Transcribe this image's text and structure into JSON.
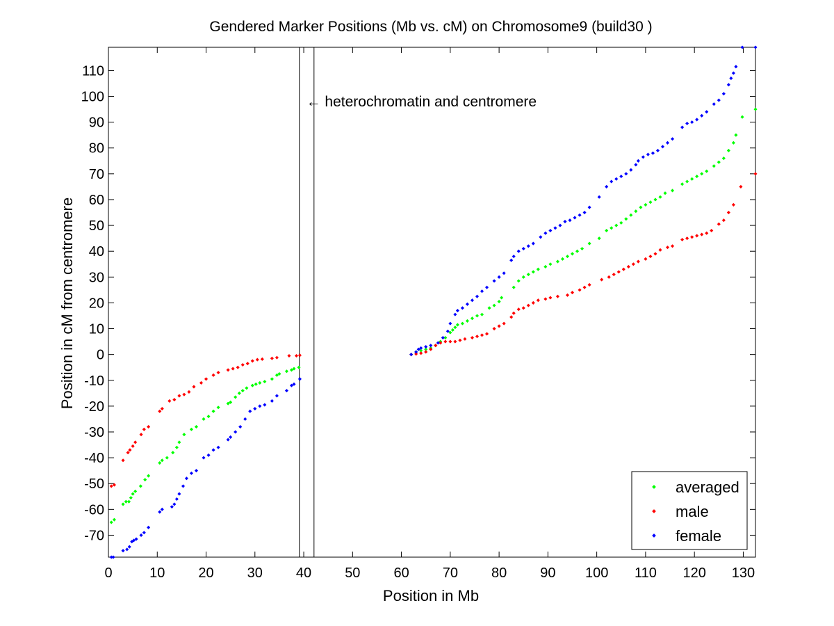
{
  "chart_data": {
    "type": "scatter",
    "title": "Gendered Marker Positions (Mb vs. cM) on Chromosome9 (build30 )",
    "xlabel": "Position in Mb",
    "ylabel": "Position in cM from centromere",
    "xlim": [
      0,
      132.5
    ],
    "ylim": [
      -78.5,
      119
    ],
    "xticks": [
      0,
      10,
      20,
      30,
      40,
      50,
      60,
      70,
      80,
      90,
      100,
      110,
      120,
      130
    ],
    "yticks": [
      -70,
      -60,
      -50,
      -40,
      -30,
      -20,
      -10,
      0,
      10,
      20,
      30,
      40,
      50,
      60,
      70,
      80,
      90,
      100,
      110
    ],
    "grid": false,
    "legend_position": "bottom-right",
    "annotation": {
      "text": "← heterochromatin and centromere",
      "x": 40.5,
      "y": 98
    },
    "vlines": [
      39.1,
      42.1
    ],
    "series": [
      {
        "name": "averaged",
        "color": "#00ff00",
        "points": [
          [
            0.6,
            -65
          ],
          [
            1.2,
            -64
          ],
          [
            3,
            -58
          ],
          [
            3.6,
            -57
          ],
          [
            4.2,
            -57
          ],
          [
            4.6,
            -55.5
          ],
          [
            5,
            -54
          ],
          [
            5.5,
            -53
          ],
          [
            6.6,
            -51
          ],
          [
            7.5,
            -48.5
          ],
          [
            8.2,
            -47
          ],
          [
            10.5,
            -42
          ],
          [
            11,
            -41
          ],
          [
            12,
            -40
          ],
          [
            13.2,
            -38
          ],
          [
            14,
            -36
          ],
          [
            14.5,
            -34
          ],
          [
            15.5,
            -31
          ],
          [
            17,
            -29
          ],
          [
            18,
            -28
          ],
          [
            19.5,
            -25
          ],
          [
            20.5,
            -24
          ],
          [
            21.5,
            -22
          ],
          [
            22.5,
            -20.5
          ],
          [
            24.5,
            -19
          ],
          [
            25,
            -18.5
          ],
          [
            26,
            -16.5
          ],
          [
            26.8,
            -15
          ],
          [
            27.5,
            -14
          ],
          [
            28.3,
            -13
          ],
          [
            29.5,
            -12
          ],
          [
            30.2,
            -11.5
          ],
          [
            31,
            -11
          ],
          [
            32,
            -10.5
          ],
          [
            33.5,
            -9.5
          ],
          [
            34.5,
            -8
          ],
          [
            35,
            -7.5
          ],
          [
            36.5,
            -6.5
          ],
          [
            37.5,
            -6
          ],
          [
            38,
            -5.5
          ],
          [
            39,
            -5
          ],
          [
            62,
            0
          ],
          [
            63,
            1
          ],
          [
            64,
            1.5
          ],
          [
            65,
            2
          ],
          [
            66,
            2.5
          ],
          [
            67,
            3.5
          ],
          [
            68,
            5
          ],
          [
            69,
            6.5
          ],
          [
            70,
            8.5
          ],
          [
            70.5,
            9.5
          ],
          [
            71,
            10.5
          ],
          [
            71.5,
            11.5
          ],
          [
            72.5,
            12
          ],
          [
            73.5,
            13
          ],
          [
            74.5,
            14
          ],
          [
            75.5,
            15
          ],
          [
            76.5,
            15.5
          ],
          [
            78,
            18
          ],
          [
            79,
            19
          ],
          [
            80,
            20.5
          ],
          [
            80.5,
            22
          ],
          [
            83,
            26
          ],
          [
            84,
            28.5
          ],
          [
            85,
            30
          ],
          [
            86,
            31
          ],
          [
            87,
            32
          ],
          [
            88,
            33
          ],
          [
            89.5,
            34
          ],
          [
            90.5,
            35
          ],
          [
            92,
            36
          ],
          [
            93,
            37
          ],
          [
            94,
            38
          ],
          [
            95,
            39
          ],
          [
            96,
            40
          ],
          [
            97,
            41
          ],
          [
            98.5,
            43
          ],
          [
            100.5,
            45
          ],
          [
            102,
            48
          ],
          [
            103,
            49
          ],
          [
            104,
            50
          ],
          [
            105,
            51
          ],
          [
            106,
            52.5
          ],
          [
            107,
            54
          ],
          [
            108,
            55.5
          ],
          [
            109,
            57
          ],
          [
            110,
            58
          ],
          [
            111,
            59
          ],
          [
            112,
            60
          ],
          [
            113,
            61
          ],
          [
            114,
            62.5
          ],
          [
            115.5,
            63.5
          ],
          [
            117.5,
            66
          ],
          [
            118.5,
            67
          ],
          [
            119.5,
            68
          ],
          [
            120.5,
            69
          ],
          [
            121.5,
            70
          ],
          [
            122.5,
            71
          ],
          [
            124,
            73
          ],
          [
            125,
            74.5
          ],
          [
            126,
            76
          ],
          [
            127,
            79
          ],
          [
            128,
            82
          ],
          [
            128.5,
            85
          ],
          [
            129.8,
            92
          ],
          [
            132.5,
            95
          ]
        ]
      },
      {
        "name": "male",
        "color": "#ff0000",
        "points": [
          [
            0.6,
            -51
          ],
          [
            1.2,
            -50.5
          ],
          [
            3,
            -41
          ],
          [
            4,
            -38
          ],
          [
            4.4,
            -37
          ],
          [
            5,
            -35.5
          ],
          [
            5.5,
            -34
          ],
          [
            6.7,
            -31
          ],
          [
            7.3,
            -29
          ],
          [
            8.2,
            -28
          ],
          [
            10.5,
            -22
          ],
          [
            11,
            -21
          ],
          [
            12.5,
            -18
          ],
          [
            13.5,
            -17.5
          ],
          [
            14.5,
            -16
          ],
          [
            15.5,
            -15.5
          ],
          [
            16.5,
            -14.5
          ],
          [
            17.5,
            -12.5
          ],
          [
            19,
            -11
          ],
          [
            20,
            -9.5
          ],
          [
            21.5,
            -8
          ],
          [
            22.5,
            -7
          ],
          [
            24.5,
            -6
          ],
          [
            25.5,
            -5.5
          ],
          [
            26.5,
            -5
          ],
          [
            27.5,
            -4
          ],
          [
            28.5,
            -3.5
          ],
          [
            29.5,
            -2.5
          ],
          [
            30.5,
            -2
          ],
          [
            31.5,
            -1.8
          ],
          [
            33.5,
            -1.5
          ],
          [
            34.5,
            -1.2
          ],
          [
            37,
            -0.5
          ],
          [
            38.5,
            -0.5
          ],
          [
            39.2,
            -0.3
          ],
          [
            62,
            0
          ],
          [
            63,
            0.2
          ],
          [
            64,
            0.5
          ],
          [
            65,
            1
          ],
          [
            66,
            2
          ],
          [
            67,
            3.5
          ],
          [
            68,
            4.5
          ],
          [
            69,
            5
          ],
          [
            70,
            5
          ],
          [
            71,
            5
          ],
          [
            72,
            5.5
          ],
          [
            73,
            6
          ],
          [
            74.5,
            6.5
          ],
          [
            75.5,
            7
          ],
          [
            76.5,
            7.5
          ],
          [
            77.5,
            8
          ],
          [
            79,
            10
          ],
          [
            80,
            11
          ],
          [
            81,
            12
          ],
          [
            82.5,
            14.5
          ],
          [
            83,
            16
          ],
          [
            84,
            17.5
          ],
          [
            85,
            18
          ],
          [
            86,
            19
          ],
          [
            87,
            20
          ],
          [
            88,
            21
          ],
          [
            89.5,
            21.5
          ],
          [
            90.5,
            22
          ],
          [
            92,
            22.5
          ],
          [
            94,
            23
          ],
          [
            95,
            24
          ],
          [
            96.5,
            25
          ],
          [
            97.5,
            26
          ],
          [
            98.5,
            27
          ],
          [
            101,
            29
          ],
          [
            102.5,
            30
          ],
          [
            103.5,
            31
          ],
          [
            104.5,
            32
          ],
          [
            105.5,
            33
          ],
          [
            106.5,
            34
          ],
          [
            107.5,
            35
          ],
          [
            108.5,
            36
          ],
          [
            110,
            37
          ],
          [
            111,
            38
          ],
          [
            112,
            39
          ],
          [
            113,
            40.5
          ],
          [
            114.5,
            41.5
          ],
          [
            115.5,
            42
          ],
          [
            117.5,
            44.5
          ],
          [
            118.5,
            45
          ],
          [
            119.5,
            45.5
          ],
          [
            120.5,
            46
          ],
          [
            121.5,
            46.5
          ],
          [
            122.5,
            47
          ],
          [
            123.5,
            48
          ],
          [
            125,
            50.5
          ],
          [
            126,
            52
          ],
          [
            127,
            55
          ],
          [
            128,
            58
          ],
          [
            129.5,
            65
          ],
          [
            132.5,
            70
          ]
        ]
      },
      {
        "name": "female",
        "color": "#0000ff",
        "points": [
          [
            0.6,
            -78.5
          ],
          [
            1,
            -78.5
          ],
          [
            3,
            -76
          ],
          [
            3.8,
            -75.5
          ],
          [
            4.3,
            -74.5
          ],
          [
            4.8,
            -72.5
          ],
          [
            5.2,
            -72
          ],
          [
            5.7,
            -71.5
          ],
          [
            6.7,
            -70
          ],
          [
            7.3,
            -69
          ],
          [
            8.2,
            -67
          ],
          [
            10.5,
            -61
          ],
          [
            11,
            -60
          ],
          [
            13,
            -59
          ],
          [
            13.5,
            -58
          ],
          [
            14,
            -56
          ],
          [
            14.5,
            -54
          ],
          [
            15.3,
            -51
          ],
          [
            16,
            -48
          ],
          [
            17,
            -46
          ],
          [
            18,
            -45
          ],
          [
            19.5,
            -40
          ],
          [
            20.5,
            -39
          ],
          [
            21.5,
            -37
          ],
          [
            22.5,
            -36
          ],
          [
            24.5,
            -33
          ],
          [
            25,
            -32
          ],
          [
            26,
            -30
          ],
          [
            27,
            -28
          ],
          [
            28,
            -25
          ],
          [
            29,
            -22
          ],
          [
            30,
            -21
          ],
          [
            31,
            -20
          ],
          [
            32,
            -19.5
          ],
          [
            33.5,
            -18
          ],
          [
            34.5,
            -16
          ],
          [
            36.5,
            -14
          ],
          [
            37.5,
            -12
          ],
          [
            38,
            -11.5
          ],
          [
            39.2,
            -9.5
          ],
          [
            62,
            0
          ],
          [
            63,
            1
          ],
          [
            63.5,
            2
          ],
          [
            64,
            2.5
          ],
          [
            65,
            3
          ],
          [
            66,
            3.5
          ],
          [
            67.5,
            4.5
          ],
          [
            68.5,
            6.5
          ],
          [
            69.5,
            9
          ],
          [
            70,
            12
          ],
          [
            71,
            15.5
          ],
          [
            71.5,
            17
          ],
          [
            72.5,
            18
          ],
          [
            73.5,
            19.5
          ],
          [
            74.5,
            21
          ],
          [
            75.5,
            22.5
          ],
          [
            76.5,
            24.5
          ],
          [
            77.5,
            26
          ],
          [
            79,
            28.5
          ],
          [
            80,
            30
          ],
          [
            81,
            31.5
          ],
          [
            82.5,
            36.5
          ],
          [
            83,
            38
          ],
          [
            84,
            40
          ],
          [
            85,
            41
          ],
          [
            86,
            42
          ],
          [
            87,
            43
          ],
          [
            88.5,
            45.5
          ],
          [
            89.5,
            47
          ],
          [
            90.5,
            48
          ],
          [
            91.5,
            49
          ],
          [
            92.5,
            50
          ],
          [
            93.5,
            51.5
          ],
          [
            94.5,
            52
          ],
          [
            95.5,
            53
          ],
          [
            96.5,
            54
          ],
          [
            97.5,
            55
          ],
          [
            98.5,
            57
          ],
          [
            100.5,
            61
          ],
          [
            102,
            65
          ],
          [
            103,
            67
          ],
          [
            104,
            68
          ],
          [
            105,
            69
          ],
          [
            106,
            70
          ],
          [
            107,
            71.5
          ],
          [
            108,
            73.5
          ],
          [
            108.5,
            75
          ],
          [
            109.5,
            76.5
          ],
          [
            110.5,
            77.5
          ],
          [
            111.5,
            78
          ],
          [
            112.5,
            79
          ],
          [
            113.5,
            80.5
          ],
          [
            114.5,
            82
          ],
          [
            115.5,
            83.5
          ],
          [
            117.5,
            88
          ],
          [
            118.5,
            89.5
          ],
          [
            119.5,
            90
          ],
          [
            120.5,
            91
          ],
          [
            121.5,
            92.5
          ],
          [
            122.5,
            94
          ],
          [
            124,
            97
          ],
          [
            125,
            98.5
          ],
          [
            126,
            101
          ],
          [
            127,
            104.5
          ],
          [
            127.5,
            107
          ],
          [
            128,
            109
          ],
          [
            128.5,
            111.5
          ],
          [
            129.8,
            119
          ],
          [
            132.5,
            119
          ]
        ]
      }
    ]
  }
}
